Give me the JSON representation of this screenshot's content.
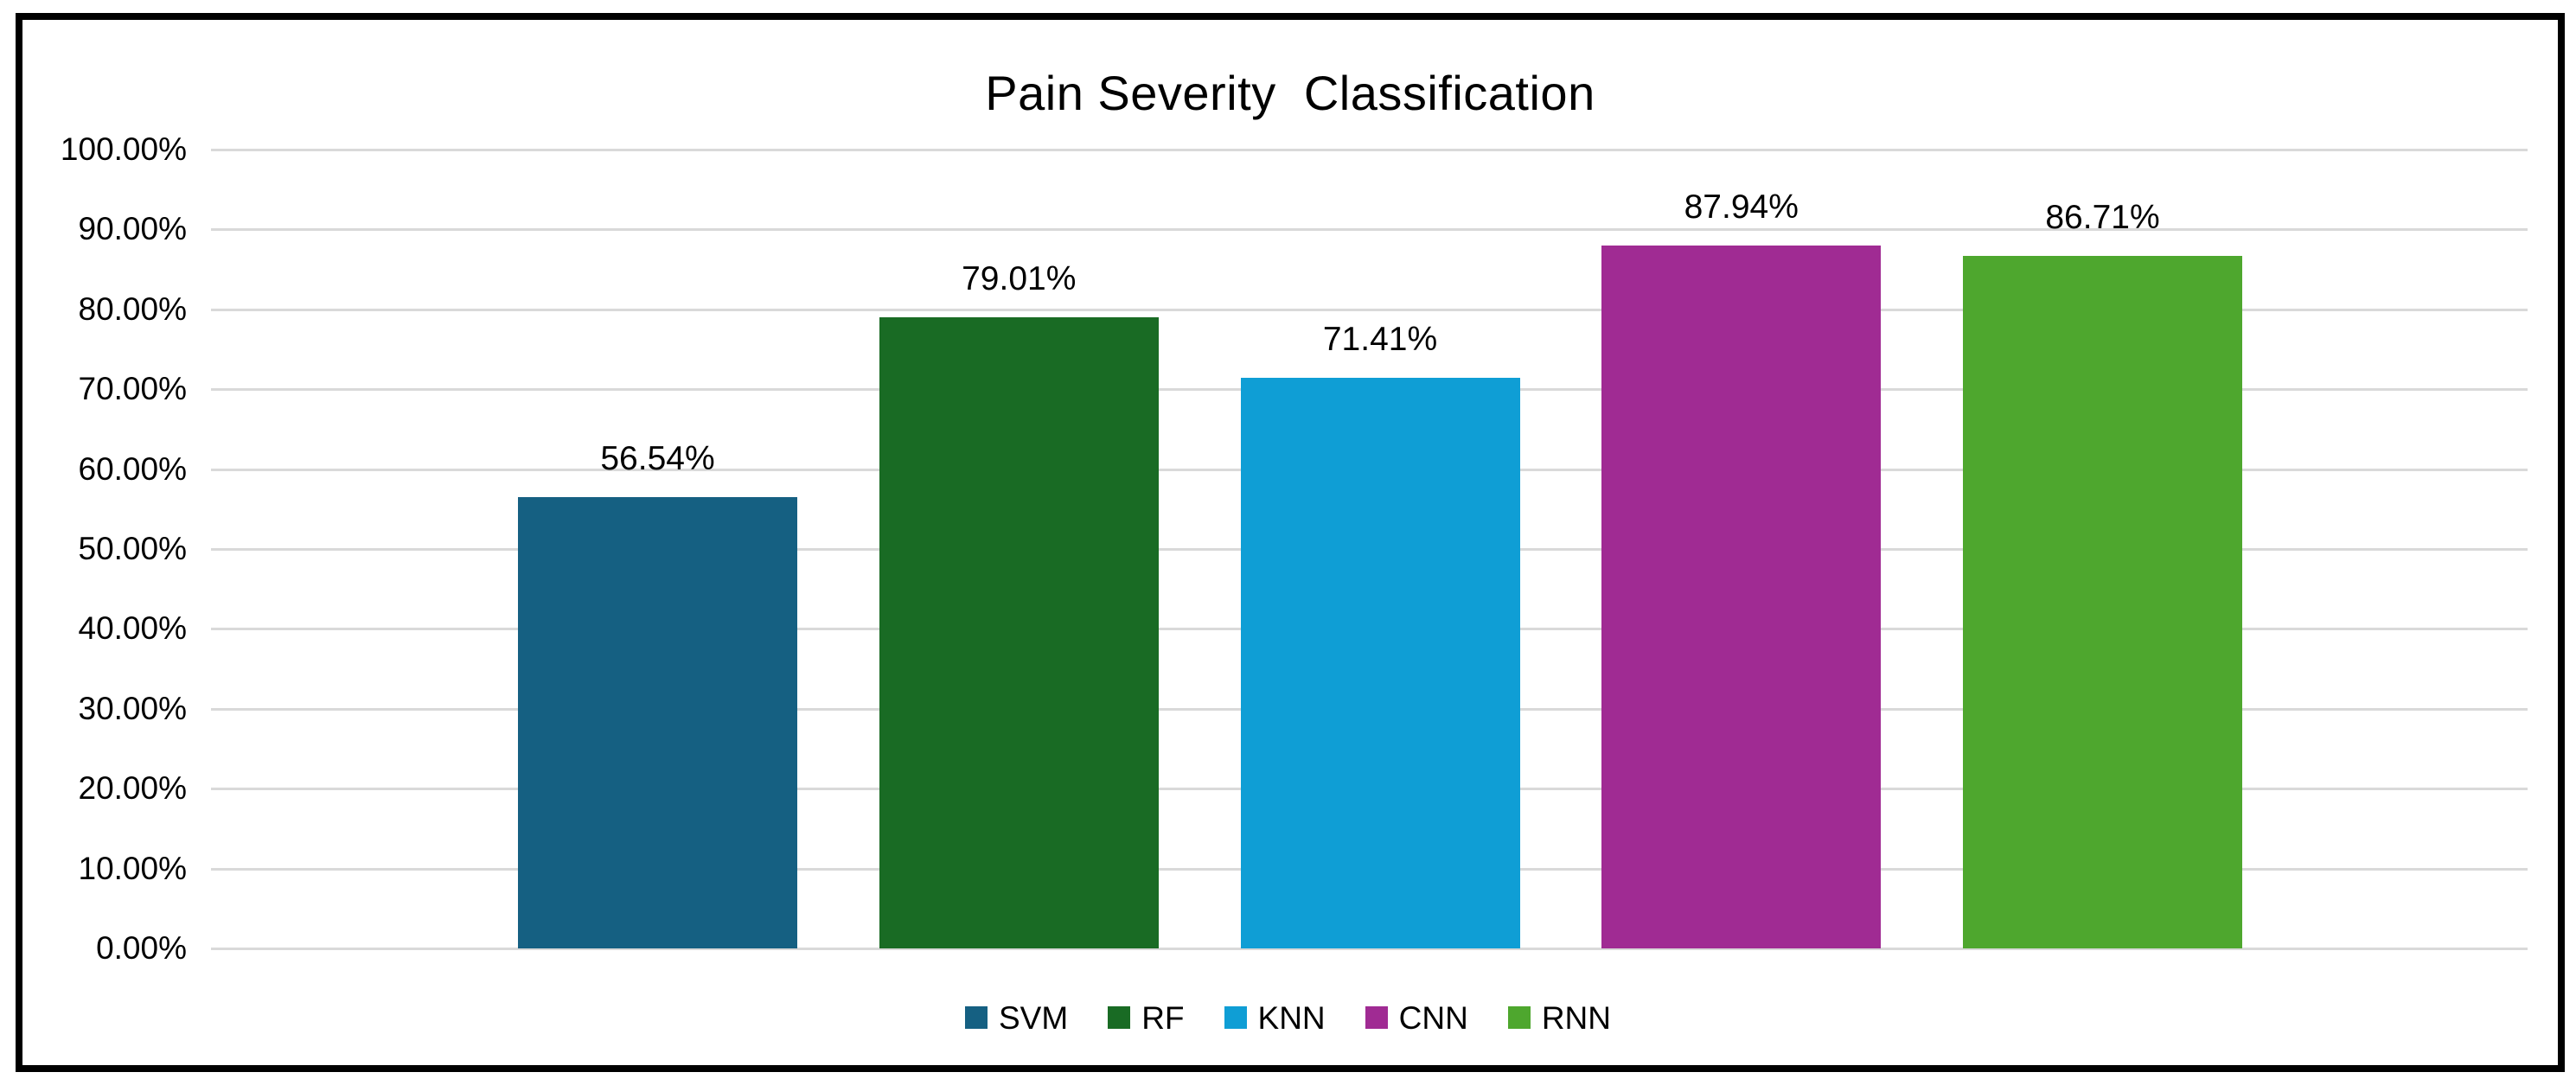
{
  "title": "Pain Severity  Classification",
  "chart_data": {
    "type": "bar",
    "title": "Pain Severity  Classification",
    "categories": [
      "Pain Severity Classification"
    ],
    "series": [
      {
        "name": "SVM",
        "value": 56.54,
        "label": "56.54%",
        "color": "#156082"
      },
      {
        "name": "RF",
        "value": 79.01,
        "label": "79.01%",
        "color": "#196B24"
      },
      {
        "name": "KNN",
        "value": 71.41,
        "label": "71.41%",
        "color": "#0F9ED5"
      },
      {
        "name": "CNN",
        "value": 87.94,
        "label": "87.94%",
        "color": "#A02B93"
      },
      {
        "name": "RNN",
        "value": 86.71,
        "label": "86.71%",
        "color": "#4EA72E"
      }
    ],
    "y_axis": {
      "min": 0,
      "max": 100,
      "step": 10,
      "tick_labels": [
        "0.00%",
        "10.00%",
        "20.00%",
        "30.00%",
        "40.00%",
        "50.00%",
        "60.00%",
        "70.00%",
        "80.00%",
        "90.00%",
        "100.00%"
      ]
    },
    "xlabel": "",
    "ylabel": "",
    "grid": true,
    "legend_position": "bottom",
    "legend_entries": [
      "SVM",
      "RF",
      "KNN",
      "CNN",
      "RNN"
    ]
  },
  "colors": {
    "gridline": "#D9D9D9",
    "frame_border": "#000000",
    "background": "#FFFFFF",
    "text": "#000000"
  }
}
